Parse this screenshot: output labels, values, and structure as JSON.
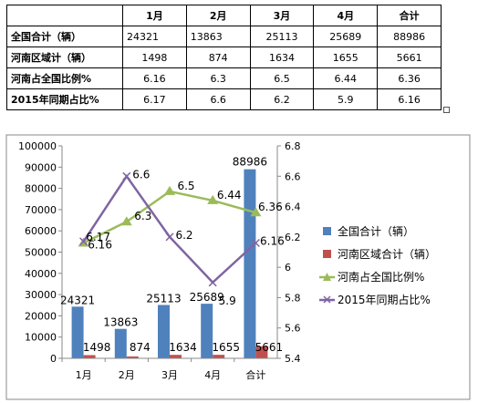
{
  "table": {
    "headers": [
      "",
      "1月",
      "2月",
      "3月",
      "4月",
      "合计"
    ],
    "rows": [
      {
        "label": "全国合计（辆）",
        "cells": [
          "24321",
          "13863",
          "25113",
          "25689",
          "88986"
        ]
      },
      {
        "label": "河南区域计（辆）",
        "cells": [
          "1498",
          "874",
          "1634",
          "1655",
          "5661"
        ]
      },
      {
        "label": "河南占全国比例%",
        "cells": [
          "6.16",
          "6.3",
          "6.5",
          "6.44",
          "6.36"
        ]
      },
      {
        "label": "2015年同期占比%",
        "cells": [
          "6.17",
          "6.6",
          "6.2",
          "5.9",
          "6.16"
        ]
      }
    ]
  },
  "chart_data": {
    "type": "bar",
    "categories": [
      "1月",
      "2月",
      "3月",
      "4月",
      "合计"
    ],
    "series": [
      {
        "name": "全国合计（辆）",
        "kind": "bar",
        "axis": "left",
        "color": "#4f81bd",
        "values": [
          24321,
          13863,
          25113,
          25689,
          88986
        ],
        "labels": [
          "24321",
          "13863",
          "25113",
          "25689",
          "88986"
        ]
      },
      {
        "name": "河南区域合计（辆）",
        "kind": "bar",
        "axis": "left",
        "color": "#c0504d",
        "values": [
          1498,
          874,
          1634,
          1655,
          5661
        ],
        "labels": [
          "1498",
          "874",
          "1634",
          "1655",
          "5661"
        ]
      },
      {
        "name": "河南占全国比例%",
        "kind": "line",
        "marker": "triangle",
        "axis": "right",
        "color": "#9bbb59",
        "values": [
          6.16,
          6.3,
          6.5,
          6.44,
          6.36
        ],
        "labels": [
          "6.16",
          "6.3",
          "6.5",
          "6.44",
          "6.36"
        ]
      },
      {
        "name": "2015年同期占比%",
        "kind": "line",
        "marker": "x",
        "axis": "right",
        "color": "#8064a2",
        "values": [
          6.17,
          6.6,
          6.2,
          5.9,
          6.16
        ],
        "labels": [
          "6.17",
          "6.6",
          "6.2",
          "5.9",
          "6.16"
        ]
      }
    ],
    "y_left": {
      "range": [
        0,
        100000
      ],
      "ticks": [
        "0",
        "10000",
        "20000",
        "30000",
        "40000",
        "50000",
        "60000",
        "70000",
        "80000",
        "90000",
        "100000"
      ]
    },
    "y_right": {
      "range": [
        5.4,
        6.8
      ],
      "ticks": [
        "5.4",
        "5.6",
        "5.8",
        "6",
        "6.2",
        "6.4",
        "6.6",
        "6.8"
      ]
    },
    "grid": false,
    "legend": "right"
  },
  "colors": {
    "bar1": "#4f81bd",
    "bar2": "#c0504d",
    "line1": "#9bbb59",
    "line2": "#8064a2",
    "frame": "#888888"
  }
}
